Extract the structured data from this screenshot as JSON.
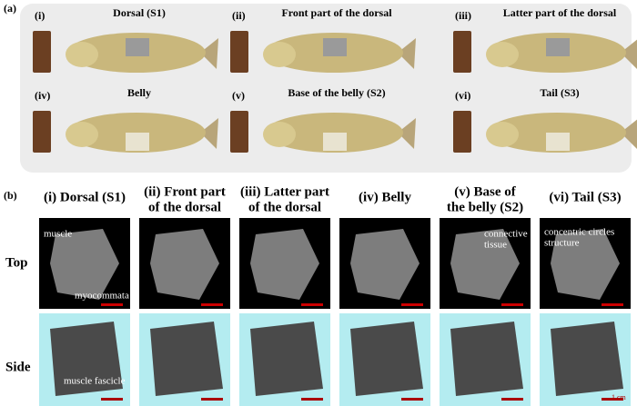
{
  "panel_a": {
    "label": "(a)",
    "items": [
      {
        "index": "(i)",
        "title": "Dorsal (S1)"
      },
      {
        "index": "(ii)",
        "title": "Front part of the dorsal"
      },
      {
        "index": "(iii)",
        "title": "Latter part of the dorsal"
      },
      {
        "index": "(iv)",
        "title": "Belly"
      },
      {
        "index": "(v)",
        "title": "Base of the belly (S2)"
      },
      {
        "index": "(vi)",
        "title": "Tail (S3)"
      }
    ]
  },
  "panel_b": {
    "label": "(b)",
    "columns": [
      [
        "(i) Dorsal (S1)"
      ],
      [
        "(ii) Front part",
        "of the dorsal"
      ],
      [
        "(iii) Latter part",
        "of the dorsal"
      ],
      [
        "(iv) Belly"
      ],
      [
        "(v) Base of",
        "the belly (S2)"
      ],
      [
        "(vi) Tail (S3)"
      ]
    ],
    "rows": [
      "Top",
      "Side"
    ],
    "annotations": [
      [
        "muscle"
      ],
      [
        "myocommata"
      ],
      [
        "connective",
        "tissue"
      ],
      [
        "concentric circles",
        "structure"
      ],
      [
        "muscle fascicle"
      ]
    ],
    "scale_bar": "1 cm"
  }
}
